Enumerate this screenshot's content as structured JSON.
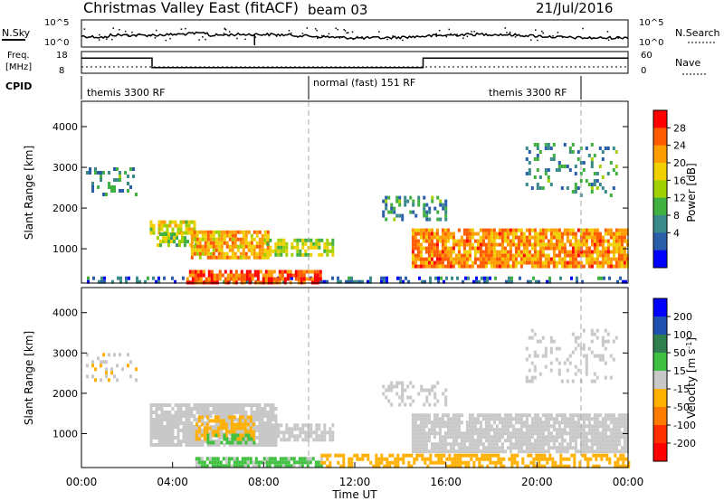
{
  "header": {
    "title": "Christmas Valley East (fitACF)",
    "beam": "beam 03",
    "date": "21/Jul/2016"
  },
  "top_panels": {
    "noise": {
      "left_label": "N.Sky",
      "right_label": "N.Search",
      "left_ticks": [
        "10^5",
        "10^0"
      ],
      "right_ticks": [
        "10^5",
        "10^0"
      ]
    },
    "freq": {
      "left_label_1": "Freq.",
      "left_label_2": "[MHz]",
      "right_label": "Nave",
      "left_ticks": [
        "18",
        "8"
      ],
      "right_ticks": [
        "60",
        "0"
      ],
      "freq_steps": [
        {
          "start_h": 0.0,
          "end_h": 3.1,
          "mhz": 15.0
        },
        {
          "start_h": 3.1,
          "end_h": 15.0,
          "mhz": 10.6
        },
        {
          "start_h": 15.0,
          "end_h": 24.0,
          "mhz": 15.0
        }
      ]
    },
    "cpid": {
      "label": "CPID",
      "segments": [
        "themis 3300 RF",
        "normal (fast) 151 RF",
        "themis 3300 RF"
      ]
    }
  },
  "power_colorbar": {
    "title": "Power [dB]",
    "ticks": [
      "28",
      "24",
      "20",
      "16",
      "12",
      "8",
      "4"
    ],
    "colors": [
      "#ff0000",
      "#ff5a00",
      "#ff9c00",
      "#f0d000",
      "#a0d000",
      "#40b040",
      "#3a8a8a",
      "#2b5ea8",
      "#0000ff"
    ]
  },
  "velocity_colorbar": {
    "title": "Velocity [m s",
    "title_sup": "-1",
    "title_end": "]",
    "ticks": [
      "200",
      "100",
      "50",
      "15",
      "-15",
      "-50",
      "-100",
      "-200"
    ],
    "colors": [
      "#0000ff",
      "#2050b0",
      "#2f7f4f",
      "#40c040",
      "#c8c8c8",
      "#ffb000",
      "#ff7a00",
      "#ff3000",
      "#ff0000"
    ]
  },
  "axes": {
    "ylabel": "Slant Range [km]",
    "yticks": [
      "4000",
      "3000",
      "2000",
      "1000"
    ],
    "xlabel": "Time UT",
    "xticks": [
      "00:00",
      "04:00",
      "08:00",
      "12:00",
      "16:00",
      "20:00",
      "00:00"
    ]
  },
  "chart_data": [
    {
      "type": "heatmap",
      "title": "Power [dB]",
      "xlabel": "Time UT",
      "ylabel": "Slant Range [km]",
      "x_range_hours": [
        0,
        24
      ],
      "ylim_km": [
        180,
        4600
      ],
      "color_scale": [
        0,
        30
      ],
      "regions": [
        {
          "t0": 0.0,
          "t1": 24.0,
          "r0": 180,
          "r1": 320,
          "value": 6,
          "density": 0.35
        },
        {
          "t0": 4.6,
          "t1": 10.5,
          "r0": 180,
          "r1": 480,
          "value": 26,
          "density": 0.8
        },
        {
          "t0": 3.0,
          "t1": 5.0,
          "r0": 1400,
          "r1": 1700,
          "value": 17,
          "density": 0.75
        },
        {
          "t0": 3.3,
          "t1": 5.0,
          "r0": 1100,
          "r1": 1400,
          "value": 14,
          "density": 0.5
        },
        {
          "t0": 4.8,
          "t1": 8.2,
          "r0": 750,
          "r1": 1450,
          "value": 21,
          "density": 0.85
        },
        {
          "t0": 8.0,
          "t1": 11.0,
          "r0": 850,
          "r1": 1250,
          "value": 15,
          "density": 0.7
        },
        {
          "t0": 14.5,
          "t1": 24.0,
          "r0": 600,
          "r1": 1500,
          "value": 22,
          "density": 0.85
        },
        {
          "t0": 13.2,
          "t1": 16.0,
          "r0": 1700,
          "r1": 2300,
          "value": 9,
          "density": 0.35
        },
        {
          "t0": 0.2,
          "t1": 2.4,
          "r0": 2300,
          "r1": 3000,
          "value": 9,
          "density": 0.25
        },
        {
          "t0": 19.5,
          "t1": 23.5,
          "r0": 2300,
          "r1": 3600,
          "value": 9,
          "density": 0.2
        }
      ]
    },
    {
      "type": "heatmap",
      "title": "Velocity [m s-1]",
      "xlabel": "Time UT",
      "ylabel": "Slant Range [km]",
      "x_range_hours": [
        0,
        24
      ],
      "ylim_km": [
        180,
        4600
      ],
      "color_scale": [
        -200,
        200
      ],
      "regions": [
        {
          "t0": 5.0,
          "t1": 10.5,
          "r0": 180,
          "r1": 420,
          "value": 25,
          "density": 0.8
        },
        {
          "t0": 10.5,
          "t1": 24.0,
          "r0": 180,
          "r1": 500,
          "value": -30,
          "density": 0.55
        },
        {
          "t0": 3.0,
          "t1": 8.5,
          "r0": 700,
          "r1": 1750,
          "value": 0,
          "density": 0.85
        },
        {
          "t0": 5.0,
          "t1": 7.6,
          "r0": 900,
          "r1": 1450,
          "value": -40,
          "density": 0.6
        },
        {
          "t0": 5.5,
          "t1": 7.6,
          "r0": 750,
          "r1": 1000,
          "value": 25,
          "density": 0.6
        },
        {
          "t0": 8.0,
          "t1": 11.0,
          "r0": 850,
          "r1": 1250,
          "value": 0,
          "density": 0.75
        },
        {
          "t0": 14.5,
          "t1": 24.0,
          "r0": 600,
          "r1": 1500,
          "value": 0,
          "density": 0.85
        },
        {
          "t0": 13.2,
          "t1": 16.0,
          "r0": 1700,
          "r1": 2300,
          "value": 0,
          "density": 0.35
        },
        {
          "t0": 0.2,
          "t1": 2.4,
          "r0": 2300,
          "r1": 3000,
          "value": -20,
          "density": 0.25
        },
        {
          "t0": 19.5,
          "t1": 23.5,
          "r0": 2300,
          "r1": 3600,
          "value": 0,
          "density": 0.2
        }
      ]
    }
  ]
}
